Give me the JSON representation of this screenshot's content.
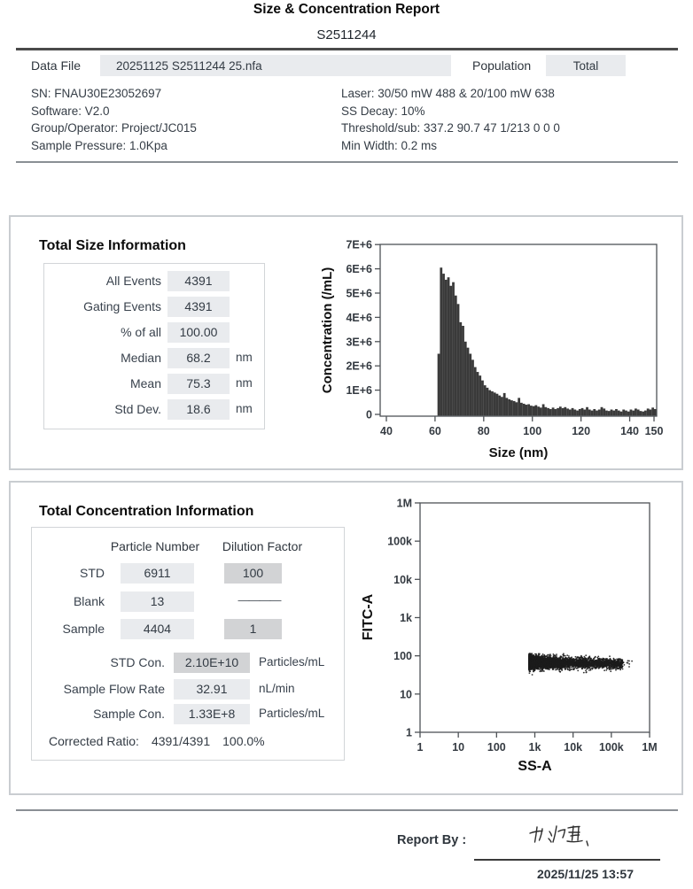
{
  "report": {
    "title": "Size & Concentration Report",
    "sample_id": "S2511244",
    "data_file": {
      "label": "Data File",
      "value": "20251125 S2511244 25.nfa"
    },
    "population": {
      "label": "Population",
      "value": "Total"
    },
    "meta_left": [
      "SN: FNAU30E23052697",
      "Software:  V2.0",
      "Group/Operator: Project/JC015",
      "Sample Pressure: 1.0Kpa"
    ],
    "meta_right": [
      "Laser: 30/50 mW 488 & 20/100 mW 638",
      "SS Decay: 10%",
      "Threshold/sub:  337.2 90.7 47 1/213 0 0 0",
      "Min Width:  0.2 ms"
    ]
  },
  "size_section": {
    "heading": "Total Size Information",
    "rows": [
      {
        "label": "All  Events",
        "value": "4391",
        "unit": ""
      },
      {
        "label": "Gating Events",
        "value": "4391",
        "unit": ""
      },
      {
        "label": "% of all",
        "value": "100.00",
        "unit": ""
      },
      {
        "label": "Median",
        "value": "68.2",
        "unit": "nm"
      },
      {
        "label": "Mean",
        "value": "75.3",
        "unit": "nm"
      },
      {
        "label": "Std Dev.",
        "value": "18.6",
        "unit": "nm"
      }
    ]
  },
  "conc_section": {
    "heading": "Total Concentration Information",
    "col_headers": [
      "Particle Number",
      "Dilution Factor"
    ],
    "rows": [
      {
        "label": "STD",
        "value": "6911",
        "dilution": "100"
      },
      {
        "label": "Blank",
        "value": "13",
        "dilution": "————"
      },
      {
        "label": "Sample",
        "value": "4404",
        "dilution": "1"
      }
    ],
    "results": [
      {
        "label": "STD Con.",
        "value": "2.10E+10",
        "unit": "Particles/mL"
      },
      {
        "label": "Sample Flow Rate",
        "value": "32.91",
        "unit": "nL/min"
      },
      {
        "label": "Sample Con.",
        "value": "1.33E+8",
        "unit": "Particles/mL"
      }
    ],
    "corrected_ratio": {
      "label": "Corrected Ratio:",
      "ratio": "4391/4391",
      "percent": "100.0%"
    }
  },
  "footer": {
    "report_by_label": "Report By :",
    "date": "2025/11/25 13:57"
  },
  "colors": {
    "box_light": "#e9ebee",
    "box_dark": "#d2d3d5",
    "bar_fill": "#3a3a3a",
    "point_fill": "#1c1c1c",
    "axis_stroke": "#4f5357",
    "tick_text": "#343a41",
    "axis_title": "#101010"
  },
  "chart_data": [
    {
      "type": "bar",
      "title": "Size distribution histogram",
      "xlabel": "Size (nm)",
      "ylabel": "Concentration (/mL)",
      "xlim": [
        40,
        151
      ],
      "ylim": [
        0,
        7000000
      ],
      "x_ticks": [
        40,
        60,
        80,
        100,
        120,
        140,
        150
      ],
      "y_ticks_e6": [
        0,
        1,
        2,
        3,
        4,
        5,
        6,
        7
      ],
      "y_tick_labels": [
        "0",
        "1E+6",
        "2E+6",
        "3E+6",
        "4E+6",
        "5E+6",
        "6E+6",
        "7E+6"
      ],
      "grid": false,
      "bin_start_nm": 61,
      "bin_width_nm": 1,
      "values_e6": [
        2.5,
        6.05,
        5.8,
        5.55,
        5.65,
        5.3,
        5.45,
        4.9,
        4.55,
        3.8,
        3.65,
        3.0,
        2.75,
        2.5,
        2.25,
        1.95,
        1.75,
        1.6,
        1.4,
        1.2,
        1.1,
        1.0,
        0.95,
        0.9,
        0.85,
        0.78,
        0.72,
        0.88,
        0.68,
        0.62,
        0.58,
        0.55,
        0.5,
        0.68,
        0.48,
        0.44,
        0.4,
        0.42,
        0.36,
        0.34,
        0.38,
        0.32,
        0.28,
        0.42,
        0.3,
        0.26,
        0.22,
        0.28,
        0.22,
        0.26,
        0.32,
        0.26,
        0.3,
        0.24,
        0.2,
        0.26,
        0.2,
        0.16,
        0.22,
        0.26,
        0.2,
        0.3,
        0.2,
        0.16,
        0.22,
        0.16,
        0.2,
        0.3,
        0.24,
        0.16,
        0.14,
        0.2,
        0.16,
        0.22,
        0.16,
        0.12,
        0.2,
        0.16,
        0.12,
        0.2,
        0.16,
        0.24,
        0.2,
        0.14,
        0.12,
        0.16,
        0.24,
        0.2,
        0.28,
        0.22
      ]
    },
    {
      "type": "scatter",
      "title": "FITC-A vs SS-A dot plot",
      "xlabel": "SS-A",
      "ylabel": "FITC-A",
      "x_scale": "log",
      "y_scale": "log",
      "xlim": [
        1,
        1000000
      ],
      "ylim": [
        1,
        1000000
      ],
      "tick_labels": [
        "1",
        "10",
        "100",
        "1k",
        "10k",
        "100k",
        "1M"
      ],
      "grid": false,
      "cluster": {
        "n_points": 4404,
        "x_log10_min": 2.85,
        "x_log10_span": 2.45,
        "x_density_exponent": 2.2,
        "outlier_x_log10_range": [
          5.15,
          5.55
        ],
        "y_log10_mean": 1.83,
        "y_log10_sd": 0.088,
        "y_log10_clip": [
          1.5,
          2.06
        ],
        "description": "Dense horizontal band: FITC-A ~35-110 across SS-A ~700 to 200k, sparse outliers to ~350k"
      }
    }
  ]
}
